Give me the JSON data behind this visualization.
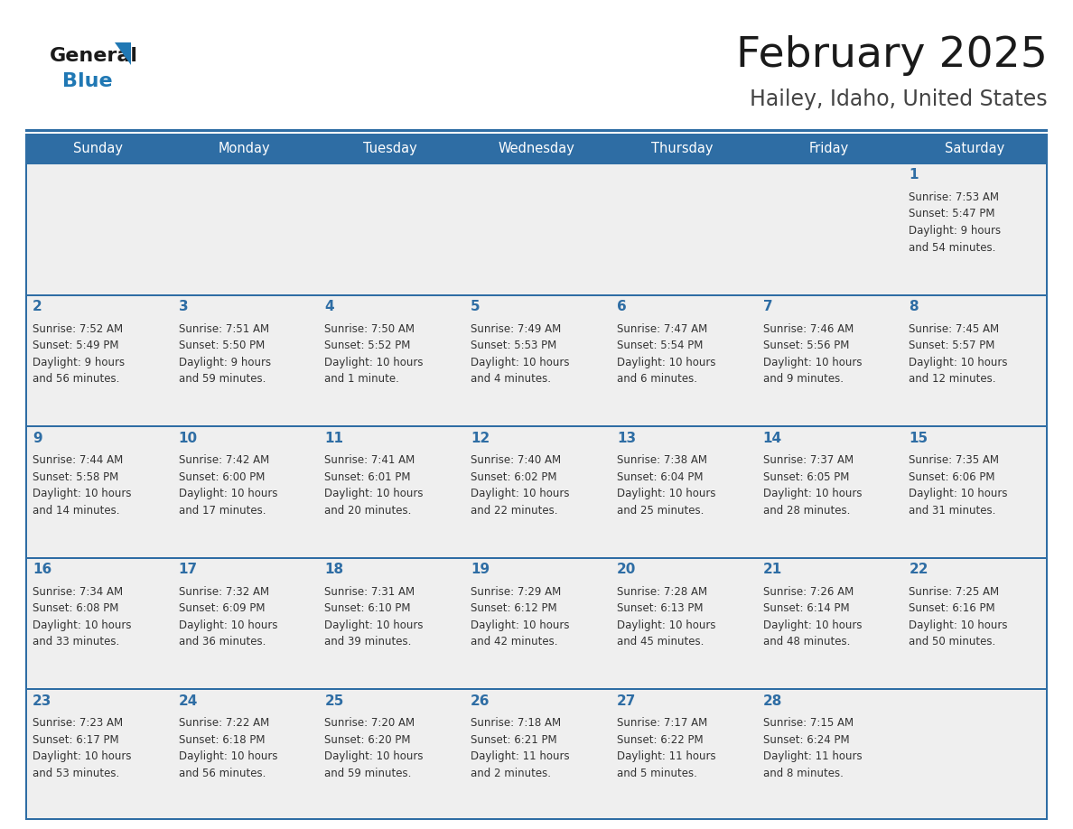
{
  "title": "February 2025",
  "subtitle": "Hailey, Idaho, United States",
  "days_of_week": [
    "Sunday",
    "Monday",
    "Tuesday",
    "Wednesday",
    "Thursday",
    "Friday",
    "Saturday"
  ],
  "header_bg": "#2E6DA4",
  "header_text": "#FFFFFF",
  "cell_bg": "#EFEFEF",
  "cell_bg_white": "#FFFFFF",
  "border_color": "#2E6DA4",
  "day_number_color": "#2E6DA4",
  "cell_text_color": "#333333",
  "title_color": "#1a1a1a",
  "subtitle_color": "#444444",
  "logo_general_color": "#1a1a1a",
  "logo_blue_color": "#2078B4",
  "weeks": [
    [
      {
        "day": null,
        "info": ""
      },
      {
        "day": null,
        "info": ""
      },
      {
        "day": null,
        "info": ""
      },
      {
        "day": null,
        "info": ""
      },
      {
        "day": null,
        "info": ""
      },
      {
        "day": null,
        "info": ""
      },
      {
        "day": 1,
        "info": "Sunrise: 7:53 AM\nSunset: 5:47 PM\nDaylight: 9 hours\nand 54 minutes."
      }
    ],
    [
      {
        "day": 2,
        "info": "Sunrise: 7:52 AM\nSunset: 5:49 PM\nDaylight: 9 hours\nand 56 minutes."
      },
      {
        "day": 3,
        "info": "Sunrise: 7:51 AM\nSunset: 5:50 PM\nDaylight: 9 hours\nand 59 minutes."
      },
      {
        "day": 4,
        "info": "Sunrise: 7:50 AM\nSunset: 5:52 PM\nDaylight: 10 hours\nand 1 minute."
      },
      {
        "day": 5,
        "info": "Sunrise: 7:49 AM\nSunset: 5:53 PM\nDaylight: 10 hours\nand 4 minutes."
      },
      {
        "day": 6,
        "info": "Sunrise: 7:47 AM\nSunset: 5:54 PM\nDaylight: 10 hours\nand 6 minutes."
      },
      {
        "day": 7,
        "info": "Sunrise: 7:46 AM\nSunset: 5:56 PM\nDaylight: 10 hours\nand 9 minutes."
      },
      {
        "day": 8,
        "info": "Sunrise: 7:45 AM\nSunset: 5:57 PM\nDaylight: 10 hours\nand 12 minutes."
      }
    ],
    [
      {
        "day": 9,
        "info": "Sunrise: 7:44 AM\nSunset: 5:58 PM\nDaylight: 10 hours\nand 14 minutes."
      },
      {
        "day": 10,
        "info": "Sunrise: 7:42 AM\nSunset: 6:00 PM\nDaylight: 10 hours\nand 17 minutes."
      },
      {
        "day": 11,
        "info": "Sunrise: 7:41 AM\nSunset: 6:01 PM\nDaylight: 10 hours\nand 20 minutes."
      },
      {
        "day": 12,
        "info": "Sunrise: 7:40 AM\nSunset: 6:02 PM\nDaylight: 10 hours\nand 22 minutes."
      },
      {
        "day": 13,
        "info": "Sunrise: 7:38 AM\nSunset: 6:04 PM\nDaylight: 10 hours\nand 25 minutes."
      },
      {
        "day": 14,
        "info": "Sunrise: 7:37 AM\nSunset: 6:05 PM\nDaylight: 10 hours\nand 28 minutes."
      },
      {
        "day": 15,
        "info": "Sunrise: 7:35 AM\nSunset: 6:06 PM\nDaylight: 10 hours\nand 31 minutes."
      }
    ],
    [
      {
        "day": 16,
        "info": "Sunrise: 7:34 AM\nSunset: 6:08 PM\nDaylight: 10 hours\nand 33 minutes."
      },
      {
        "day": 17,
        "info": "Sunrise: 7:32 AM\nSunset: 6:09 PM\nDaylight: 10 hours\nand 36 minutes."
      },
      {
        "day": 18,
        "info": "Sunrise: 7:31 AM\nSunset: 6:10 PM\nDaylight: 10 hours\nand 39 minutes."
      },
      {
        "day": 19,
        "info": "Sunrise: 7:29 AM\nSunset: 6:12 PM\nDaylight: 10 hours\nand 42 minutes."
      },
      {
        "day": 20,
        "info": "Sunrise: 7:28 AM\nSunset: 6:13 PM\nDaylight: 10 hours\nand 45 minutes."
      },
      {
        "day": 21,
        "info": "Sunrise: 7:26 AM\nSunset: 6:14 PM\nDaylight: 10 hours\nand 48 minutes."
      },
      {
        "day": 22,
        "info": "Sunrise: 7:25 AM\nSunset: 6:16 PM\nDaylight: 10 hours\nand 50 minutes."
      }
    ],
    [
      {
        "day": 23,
        "info": "Sunrise: 7:23 AM\nSunset: 6:17 PM\nDaylight: 10 hours\nand 53 minutes."
      },
      {
        "day": 24,
        "info": "Sunrise: 7:22 AM\nSunset: 6:18 PM\nDaylight: 10 hours\nand 56 minutes."
      },
      {
        "day": 25,
        "info": "Sunrise: 7:20 AM\nSunset: 6:20 PM\nDaylight: 10 hours\nand 59 minutes."
      },
      {
        "day": 26,
        "info": "Sunrise: 7:18 AM\nSunset: 6:21 PM\nDaylight: 11 hours\nand 2 minutes."
      },
      {
        "day": 27,
        "info": "Sunrise: 7:17 AM\nSunset: 6:22 PM\nDaylight: 11 hours\nand 5 minutes."
      },
      {
        "day": 28,
        "info": "Sunrise: 7:15 AM\nSunset: 6:24 PM\nDaylight: 11 hours\nand 8 minutes."
      },
      {
        "day": null,
        "info": ""
      }
    ]
  ]
}
